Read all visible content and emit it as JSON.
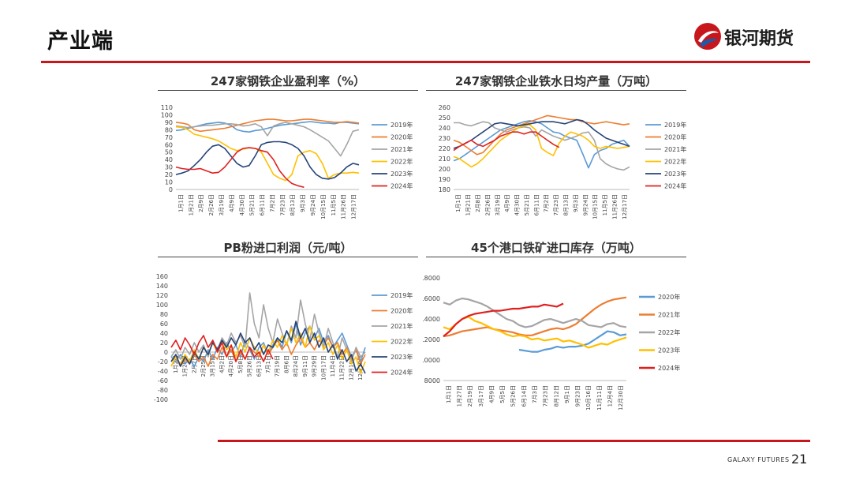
{
  "page": {
    "title": "产业端",
    "logo_text": "银河期货",
    "footer_brand": "GALAXY FUTURES",
    "page_number": "21"
  },
  "colors": {
    "accent": "#c8161d",
    "logo_blue": "#1f5aa6",
    "y2019": "#5b9bd5",
    "y2020": "#ed7d31",
    "y2021": "#a5a5a5",
    "y2022": "#ffc000",
    "y2023": "#264478",
    "y2024": "#e02020"
  },
  "chart_data": [
    {
      "type": "line",
      "title": "247家钢铁企业盈利率（%）",
      "ylim": [
        0,
        110
      ],
      "yticks": [
        0,
        10,
        20,
        30,
        40,
        50,
        60,
        70,
        80,
        90,
        100,
        110
      ],
      "x_tick_labels": [
        "1月1日",
        "1月21日",
        "2月9日",
        "2月26日",
        "3月19日",
        "4月9日",
        "4月30日",
        "5月21日",
        "6月11日",
        "7月2日",
        "7月23日",
        "8月13日",
        "9月3日",
        "9月24日",
        "10月15日",
        "11月5日",
        "11月26日",
        "12月17日"
      ],
      "legend_position": "right",
      "series": [
        {
          "name": "2019年",
          "color_key": "y2019",
          "values": [
            79,
            80,
            82,
            84,
            86,
            88,
            89,
            90,
            89,
            86,
            80,
            78,
            77,
            79,
            80,
            82,
            84,
            86,
            87,
            88,
            89,
            90,
            91,
            90,
            89,
            89,
            88,
            90,
            90,
            89,
            88
          ]
        },
        {
          "name": "2020年",
          "color_key": "y2020",
          "values": [
            90,
            89,
            87,
            80,
            78,
            79,
            80,
            81,
            82,
            84,
            86,
            88,
            90,
            92,
            93,
            94,
            94,
            93,
            92,
            92,
            93,
            94,
            94,
            93,
            92,
            91,
            90,
            90,
            91,
            90,
            89
          ]
        },
        {
          "name": "2021年",
          "color_key": "y2021",
          "values": [
            85,
            84,
            83,
            84,
            85,
            86,
            86,
            87,
            88,
            88,
            87,
            85,
            86,
            88,
            84,
            72,
            85,
            88,
            90,
            88,
            86,
            84,
            80,
            75,
            70,
            65,
            55,
            45,
            60,
            78,
            80
          ]
        },
        {
          "name": "2022年",
          "color_key": "y2022",
          "values": [
            84,
            83,
            80,
            74,
            72,
            70,
            68,
            65,
            60,
            55,
            52,
            54,
            56,
            55,
            50,
            35,
            20,
            15,
            12,
            20,
            45,
            50,
            52,
            48,
            35,
            15,
            20,
            22,
            22,
            23,
            22
          ]
        },
        {
          "name": "2023年",
          "color_key": "y2023",
          "values": [
            20,
            22,
            25,
            32,
            40,
            50,
            58,
            60,
            55,
            45,
            35,
            30,
            32,
            45,
            60,
            63,
            64,
            64,
            63,
            60,
            55,
            45,
            30,
            20,
            15,
            14,
            16,
            22,
            30,
            35,
            33
          ]
        },
        {
          "name": "2024年",
          "color_key": "y2024",
          "values": [
            30,
            28,
            27,
            27,
            28,
            25,
            22,
            23,
            30,
            40,
            50,
            55,
            56,
            55,
            52,
            50,
            40,
            25,
            15,
            8,
            5,
            3
          ]
        }
      ]
    },
    {
      "type": "line",
      "title": "247家钢铁企业铁水日均产量（万吨）",
      "ylim": [
        180,
        260
      ],
      "yticks": [
        180,
        190,
        200,
        210,
        220,
        230,
        240,
        250,
        260
      ],
      "x_tick_labels": [
        "1月1日",
        "1月21日",
        "2月8日",
        "2月26日",
        "3月19日",
        "4月9日",
        "4月30日",
        "5月21日",
        "6月11日",
        "7月2日",
        "7月23日",
        "8月13日",
        "9月3日",
        "9月24日",
        "10月15日",
        "11月5日",
        "11月26日",
        "12月17日"
      ],
      "legend_position": "right",
      "series": [
        {
          "name": "2019年",
          "color_key": "y2019",
          "values": [
            208,
            210,
            214,
            218,
            222,
            226,
            230,
            234,
            238,
            240,
            242,
            244,
            246,
            247,
            246,
            244,
            240,
            236,
            235,
            232,
            230,
            228,
            215,
            201,
            214,
            218,
            220,
            224,
            226,
            228,
            222
          ]
        },
        {
          "name": "2020年",
          "color_key": "y2020",
          "values": [
            228,
            226,
            222,
            218,
            214,
            216,
            222,
            228,
            234,
            238,
            240,
            242,
            244,
            246,
            248,
            250,
            252,
            251,
            250,
            249,
            248,
            248,
            246,
            245,
            244,
            245,
            246,
            245,
            244,
            243,
            244
          ]
        },
        {
          "name": "2021年",
          "color_key": "y2021",
          "values": [
            245,
            245,
            243,
            242,
            244,
            246,
            245,
            240,
            238,
            236,
            238,
            240,
            241,
            240,
            232,
            238,
            235,
            232,
            230,
            228,
            230,
            232,
            235,
            236,
            228,
            210,
            205,
            202,
            200,
            199,
            202
          ]
        },
        {
          "name": "2022年",
          "color_key": "y2022",
          "values": [
            212,
            210,
            206,
            202,
            205,
            210,
            216,
            222,
            228,
            232,
            236,
            240,
            242,
            243,
            238,
            220,
            216,
            213,
            225,
            232,
            236,
            234,
            232,
            228,
            222,
            220,
            222,
            221,
            220,
            221,
            222
          ]
        },
        {
          "name": "2023年",
          "color_key": "y2023",
          "values": [
            220,
            222,
            225,
            228,
            232,
            236,
            240,
            244,
            245,
            244,
            243,
            242,
            243,
            244,
            245,
            246,
            246,
            246,
            245,
            244,
            246,
            248,
            247,
            243,
            238,
            234,
            230,
            228,
            226,
            224,
            222
          ]
        },
        {
          "name": "2024年",
          "color_key": "y2024",
          "values": [
            218,
            222,
            225,
            228,
            224,
            222,
            225,
            228,
            232,
            234,
            236,
            236,
            234,
            236,
            236,
            232,
            228,
            224,
            221
          ]
        }
      ]
    },
    {
      "type": "line",
      "title": "PB粉进口利润（元/吨）",
      "ylim": [
        -100,
        160
      ],
      "yticks": [
        -100,
        -80,
        -60,
        -40,
        -20,
        0,
        20,
        40,
        60,
        80,
        100,
        120,
        140,
        160
      ],
      "x_tick_labels": [
        "1月2日",
        "1月20日",
        "2月7日",
        "2月25日",
        "3月15日",
        "4月2日",
        "4月20日",
        "5月8日",
        "5月26日",
        "6月13日",
        "7月1日",
        "7月19日",
        "8月6日",
        "8月24日",
        "9月11日",
        "9月29日",
        "10月17日",
        "11月4日",
        "11月22日",
        "12月10日",
        "12月28日"
      ],
      "legend_position": "right",
      "series": [
        {
          "name": "2019年",
          "color_key": "y2019",
          "values": [
            -10,
            -20,
            -5,
            -25,
            -15,
            -30,
            -10,
            -20,
            5,
            -15,
            10,
            -5,
            20,
            0,
            15,
            -10,
            25,
            5,
            -15,
            10,
            20,
            -5,
            15,
            30,
            10,
            45,
            20,
            60,
            15,
            40,
            55,
            30,
            50,
            20,
            35,
            10,
            25,
            40,
            15,
            -10,
            5,
            -20,
            10
          ]
        },
        {
          "name": "2020年",
          "color_key": "y2020",
          "values": [
            -20,
            -10,
            -30,
            -15,
            -25,
            -5,
            -20,
            -10,
            -30,
            -5,
            -15,
            10,
            -10,
            5,
            -20,
            0,
            -15,
            10,
            0,
            -10,
            15,
            -5,
            10,
            25,
            5,
            20,
            -5,
            15,
            30,
            10,
            20,
            5,
            25,
            15,
            30,
            10,
            20,
            -5,
            10,
            -15,
            5,
            -25,
            -5
          ]
        },
        {
          "name": "2021年",
          "color_key": "y2021",
          "values": [
            -10,
            5,
            -15,
            10,
            -5,
            20,
            0,
            15,
            -10,
            25,
            5,
            30,
            15,
            40,
            20,
            35,
            10,
            125,
            60,
            30,
            100,
            50,
            20,
            70,
            40,
            15,
            55,
            30,
            110,
            60,
            25,
            80,
            40,
            10,
            50,
            20,
            -10,
            30,
            5,
            -20,
            10,
            -10,
            0
          ]
        },
        {
          "name": "2022年",
          "color_key": "y2022",
          "values": [
            -30,
            -10,
            -25,
            -5,
            -20,
            5,
            -15,
            10,
            -5,
            20,
            0,
            25,
            5,
            15,
            -10,
            20,
            0,
            30,
            10,
            -5,
            15,
            0,
            25,
            10,
            35,
            15,
            50,
            20,
            40,
            10,
            55,
            25,
            35,
            5,
            20,
            -5,
            15,
            -15,
            5,
            -25,
            -10,
            -45,
            -20
          ]
        },
        {
          "name": "2023年",
          "color_key": "y2023",
          "values": [
            -20,
            -5,
            -30,
            -10,
            -25,
            0,
            -15,
            10,
            -5,
            20,
            5,
            25,
            10,
            30,
            15,
            40,
            20,
            30,
            5,
            20,
            -5,
            15,
            10,
            30,
            20,
            45,
            25,
            65,
            30,
            50,
            20,
            40,
            10,
            30,
            0,
            15,
            -15,
            5,
            -20,
            -5,
            -40,
            -25,
            -45
          ]
        },
        {
          "name": "2024年",
          "color_key": "y2024",
          "values": [
            10,
            25,
            5,
            30,
            15,
            -5,
            20,
            35,
            10,
            25,
            0,
            20,
            -10,
            15,
            -20,
            5,
            -15,
            10,
            -10,
            0,
            -20,
            5,
            -15
          ]
        }
      ]
    },
    {
      "type": "line",
      "title": "45个港口铁矿进口库存（万吨）",
      "ylim": [
        8000,
        18000
      ],
      "ytick_labels": [
        ".8000",
        ".6000",
        ".4000",
        ".2000",
        ".0000",
        "8000"
      ],
      "x_tick_labels": [
        "1月1日",
        "1月27日",
        "2月19日",
        "3月17日",
        "4月9日",
        "5月5日",
        "5月26日",
        "6月14日",
        "7月3日",
        "7月23日",
        "8月12日",
        "9月1日",
        "9月23日",
        "10月16日",
        "11月11日",
        "12月4日",
        "12月30日"
      ],
      "legend_position": "right",
      "series": [
        {
          "name": "2020年",
          "color_key": "y2019",
          "values": [
            null,
            null,
            null,
            null,
            null,
            null,
            null,
            null,
            null,
            null,
            null,
            null,
            11000,
            10900,
            10800,
            10800,
            11000,
            11100,
            11300,
            11200,
            11300,
            11300,
            11400,
            11600,
            12000,
            12400,
            12800,
            12700,
            12400,
            12500
          ]
        },
        {
          "name": "2021年",
          "color_key": "y2020",
          "values": [
            12300,
            12400,
            12600,
            12800,
            12900,
            13000,
            13100,
            13200,
            13000,
            12900,
            12800,
            12700,
            12500,
            12400,
            12400,
            12600,
            12800,
            13000,
            13100,
            13000,
            13200,
            13500,
            14000,
            14500,
            15000,
            15400,
            15700,
            15900,
            16000,
            16100
          ]
        },
        {
          "name": "2022年",
          "color_key": "y2021",
          "values": [
            15600,
            15400,
            15800,
            16000,
            15900,
            15700,
            15500,
            15200,
            14800,
            14400,
            14000,
            13800,
            13400,
            13200,
            13300,
            13600,
            13900,
            14000,
            13800,
            13600,
            13800,
            14000,
            13800,
            13400,
            13300,
            13200,
            13500,
            13600,
            13300,
            13200
          ]
        },
        {
          "name": "2023年",
          "color_key": "y2022",
          "values": [
            13200,
            13000,
            13500,
            14000,
            14200,
            13800,
            13600,
            13300,
            13000,
            12800,
            12500,
            12300,
            12400,
            12300,
            12000,
            12100,
            11900,
            12000,
            12100,
            11800,
            11900,
            11700,
            11500,
            11200,
            11400,
            11600,
            11500,
            11800,
            12000,
            12200
          ]
        },
        {
          "name": "2024年",
          "color_key": "y2024",
          "values": [
            12300,
            12800,
            13500,
            14000,
            14300,
            14500,
            14600,
            14700,
            14800,
            14800,
            14900,
            15000,
            15000,
            15100,
            15200,
            15200,
            15400,
            15300,
            15200,
            15500
          ]
        }
      ]
    }
  ]
}
